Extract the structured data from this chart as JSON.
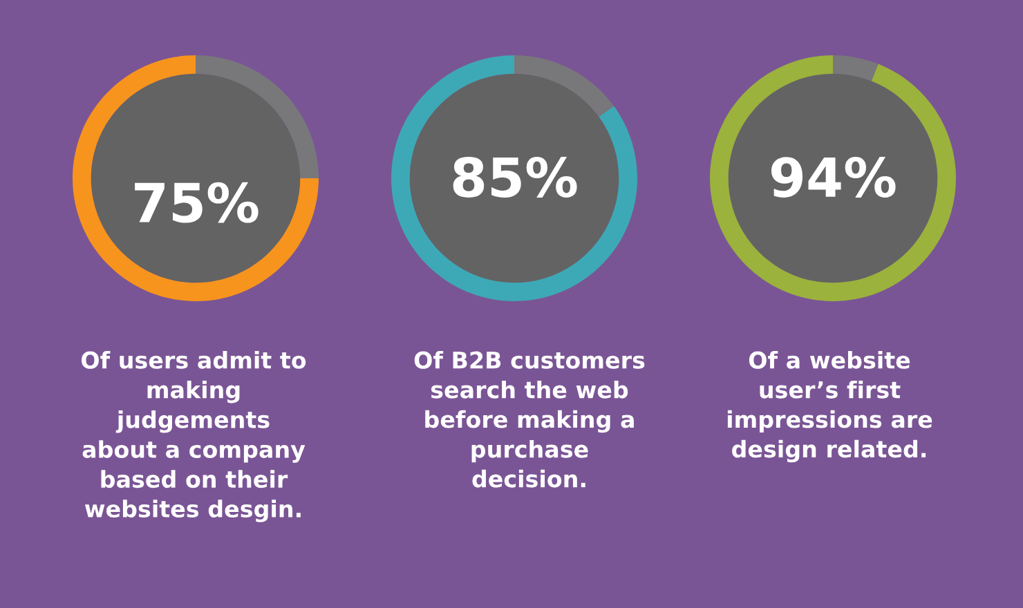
{
  "chart_data": [
    {
      "type": "donut",
      "categories": [
        null,
        null
      ],
      "values": [
        75,
        25
      ],
      "colors": [
        "#f7941d",
        "#78787b"
      ],
      "value_labels": [
        "75%",
        null
      ],
      "annotations": [
        "Of users admit to\nmaking\njudgements\nabout a company\nbased on their\nwebsites desgin."
      ]
    },
    {
      "type": "donut",
      "categories": [
        null,
        null
      ],
      "values": [
        85,
        15
      ],
      "colors": [
        "#3ea9b6",
        "#78787b"
      ],
      "value_labels": [
        "85%",
        null
      ],
      "annotations": [
        "Of B2B customers\nsearch the web\nbefore making a\npurchase\ndecision."
      ]
    },
    {
      "type": "donut",
      "categories": [
        null,
        null
      ],
      "values": [
        94,
        6
      ],
      "colors": [
        "#9bb23c",
        "#78787b"
      ],
      "value_labels": [
        "94%",
        null
      ],
      "annotations": [
        "Of a website\nuser’s first\nimpressions are\ndesign related."
      ]
    }
  ]
}
